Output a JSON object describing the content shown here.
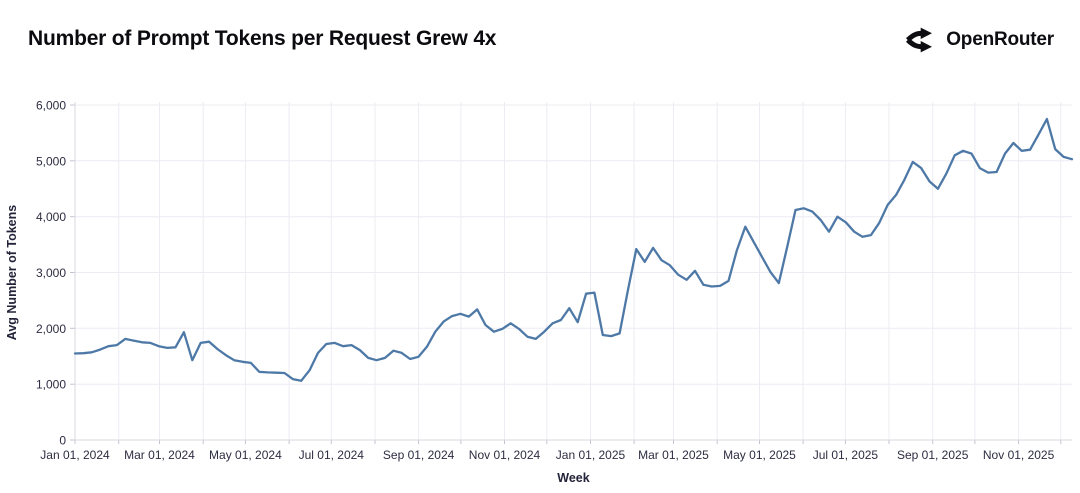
{
  "header": {
    "title": "Number of Prompt Tokens per Request Grew 4x",
    "brand_name": "OpenRouter"
  },
  "colors": {
    "line": "#4e79a7",
    "brand_black": "#0d0d12",
    "grid": "#ececf3",
    "axis": "#d8d8e1",
    "tick_mark": "#c4c4d0"
  },
  "chart_data": {
    "type": "line",
    "title": "Number of Prompt Tokens per Request Grew 4x",
    "xlabel": "Week",
    "ylabel": "Avg Number of Tokens",
    "ylim": [
      0,
      6000
    ],
    "grid": true,
    "legend": "none",
    "x_range": [
      "Jan 01, 2024",
      "Dec 2025"
    ],
    "x_ticks": [
      {
        "label": "Jan 01, 2024",
        "month": 0
      },
      {
        "label": "Mar 01, 2024",
        "month": 2
      },
      {
        "label": "May 01, 2024",
        "month": 4
      },
      {
        "label": "Jul 01, 2024",
        "month": 6
      },
      {
        "label": "Sep 01, 2024",
        "month": 8
      },
      {
        "label": "Nov 01, 2024",
        "month": 10
      },
      {
        "label": "Jan 01, 2025",
        "month": 12
      },
      {
        "label": "Mar 01, 2025",
        "month": 14
      },
      {
        "label": "May 01, 2025",
        "month": 16
      },
      {
        "label": "Jul 01, 2025",
        "month": 18
      },
      {
        "label": "Sep 01, 2025",
        "month": 20
      },
      {
        "label": "Nov 01, 2025",
        "month": 22
      }
    ],
    "y_ticks": [
      {
        "label": "0",
        "value": 0
      },
      {
        "label": "1,000",
        "value": 1000
      },
      {
        "label": "2,000",
        "value": 2000
      },
      {
        "label": "3,000",
        "value": 3000
      },
      {
        "label": "4,000",
        "value": 4000
      },
      {
        "label": "5,000",
        "value": 5000
      },
      {
        "label": "6,000",
        "value": 6000
      }
    ],
    "series": [
      {
        "name": "Avg Number of Tokens",
        "values": [
          1550,
          1555,
          1570,
          1620,
          1680,
          1700,
          1810,
          1780,
          1750,
          1740,
          1680,
          1650,
          1660,
          1930,
          1430,
          1740,
          1760,
          1630,
          1520,
          1430,
          1400,
          1380,
          1220,
          1210,
          1205,
          1200,
          1090,
          1060,
          1250,
          1560,
          1720,
          1740,
          1680,
          1700,
          1610,
          1470,
          1430,
          1470,
          1600,
          1560,
          1450,
          1490,
          1670,
          1940,
          2120,
          2220,
          2260,
          2210,
          2340,
          2060,
          1940,
          1990,
          2090,
          1990,
          1850,
          1810,
          1940,
          2090,
          2150,
          2360,
          2110,
          2620,
          2640,
          1880,
          1860,
          1910,
          2690,
          3420,
          3190,
          3440,
          3220,
          3130,
          2960,
          2870,
          3030,
          2780,
          2750,
          2760,
          2850,
          3400,
          3820,
          3550,
          3280,
          3010,
          2810,
          3450,
          4120,
          4150,
          4090,
          3940,
          3730,
          4000,
          3900,
          3730,
          3640,
          3670,
          3890,
          4210,
          4390,
          4660,
          4980,
          4870,
          4630,
          4500,
          4770,
          5100,
          5180,
          5130,
          4870,
          4790,
          4800,
          5130,
          5320,
          5180,
          5200,
          5470,
          5750,
          5210,
          5070,
          5030
        ]
      }
    ]
  }
}
